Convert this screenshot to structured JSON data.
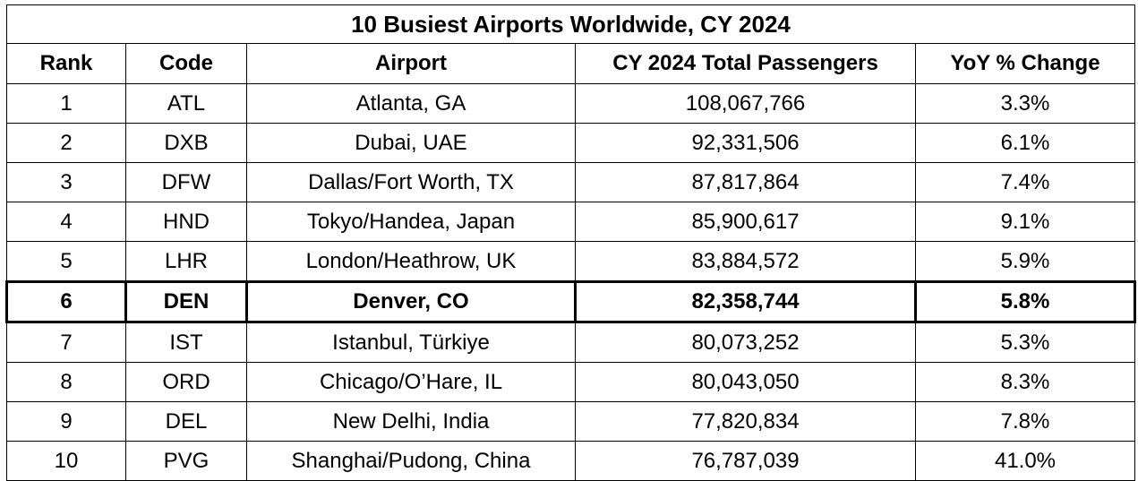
{
  "table": {
    "title": "10 Busiest Airports Worldwide, CY 2024",
    "columns": [
      "Rank",
      "Code",
      "Airport",
      "CY 2024 Total Passengers",
      "YoY % Change"
    ],
    "rows": [
      [
        "1",
        "ATL",
        "Atlanta, GA",
        "108,067,766",
        "3.3%"
      ],
      [
        "2",
        "DXB",
        "Dubai, UAE",
        "92,331,506",
        "6.1%"
      ],
      [
        "3",
        "DFW",
        "Dallas/Fort Worth, TX",
        "87,817,864",
        "7.4%"
      ],
      [
        "4",
        "HND",
        "Tokyo/Handea, Japan",
        "85,900,617",
        "9.1%"
      ],
      [
        "5",
        "LHR",
        "London/Heathrow, UK",
        "83,884,572",
        "5.9%"
      ],
      [
        "6",
        "DEN",
        "Denver, CO",
        "82,358,744",
        "5.8%"
      ],
      [
        "7",
        "IST",
        "Istanbul, Türkiye",
        "80,073,252",
        "5.3%"
      ],
      [
        "8",
        "ORD",
        "Chicago/O’Hare, IL",
        "80,043,050",
        "8.3%"
      ],
      [
        "9",
        "DEL",
        "New Delhi, India",
        "77,820,834",
        "7.8%"
      ],
      [
        "10",
        "PVG",
        "Shanghai/Pudong, China",
        "76,787,039",
        "41.0%"
      ]
    ]
  }
}
